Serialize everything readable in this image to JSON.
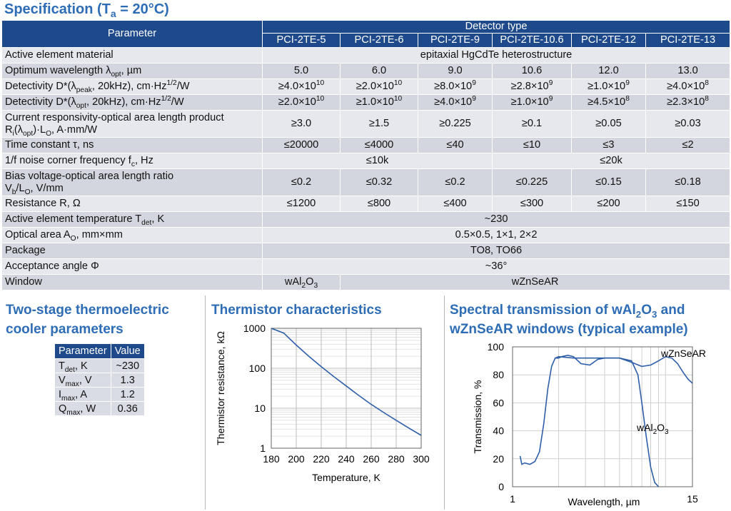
{
  "spec_title": "Specification (T",
  "spec_title_sub": "a",
  "spec_title_end": " = 20°C)",
  "table": {
    "parameter_header": "Parameter",
    "detector_type": "Detector type",
    "models": [
      "PCI-2TE-5",
      "PCI-2TE-6",
      "PCI-2TE-9",
      "PCI-2TE-10.6",
      "PCI-2TE-12",
      "PCI-2TE-13"
    ],
    "rows": {
      "material": {
        "label": "Active element material",
        "value": "epitaxial HgCdTe heterostructure"
      },
      "wavelength": {
        "label": "Optimum wavelength λ",
        "sub": "opt",
        "label_end": ", µm",
        "values": [
          "5.0",
          "6.0",
          "9.0",
          "10.6",
          "12.0",
          "13.0"
        ]
      },
      "d_peak": {
        "label": "Detectivity D*(λ",
        "sub": "peak",
        "label_end": ", 20kHz), cm·Hz",
        "sup": "1/2",
        "tail": "/W",
        "values": [
          [
            "≥4.0×10",
            "10"
          ],
          [
            "≥2.0×10",
            "10"
          ],
          [
            "≥8.0×10",
            "9"
          ],
          [
            "≥2.8×10",
            "9"
          ],
          [
            "≥1.0×10",
            "9"
          ],
          [
            "≥4.0×10",
            "8"
          ]
        ]
      },
      "d_opt": {
        "label": "Detectivity D*(λ",
        "sub": "opt",
        "label_end": ", 20kHz), cm·Hz",
        "sup": "1/2",
        "tail": "/W",
        "values": [
          [
            "≥2.0×10",
            "10"
          ],
          [
            "≥1.0×10",
            "10"
          ],
          [
            "≥4.0×10",
            "9"
          ],
          [
            "≥1.0×10",
            "9"
          ],
          [
            "≥4.5×10",
            "8"
          ],
          [
            "≥2.3×10",
            "8"
          ]
        ]
      },
      "responsivity": {
        "line1": "Current responsivity-optical area length product",
        "l2a": "R",
        "l2s1": "i",
        "l2b": "(λ",
        "l2s2": "opt",
        "l2c": ")·L",
        "l2s3": "O",
        "l2d": ", A·mm/W",
        "values": [
          "≥3.0",
          "≥1.5",
          "≥0.225",
          "≥0.1",
          "≥0.05",
          "≥0.03"
        ]
      },
      "time_constant": {
        "label": "Time constant τ, ns",
        "values": [
          "≤20000",
          "≤4000",
          "≤40",
          "≤10",
          "≤3",
          "≤2"
        ]
      },
      "noise_corner": {
        "label": "1/f noise corner frequency f",
        "sub": "c",
        "label_end": ", Hz",
        "value_a": "≤10k",
        "value_b": "≤20k"
      },
      "bias": {
        "line1": "Bias voltage-optical area length ratio",
        "l2a": "V",
        "l2s1": "b",
        "l2b": "/L",
        "l2s2": "O",
        "l2c": ", V/mm",
        "values": [
          "≤0.2",
          "≤0.32",
          "≤0.2",
          "≤0.225",
          "≤0.15",
          "≤0.18"
        ]
      },
      "resistance": {
        "label": "Resistance R, Ω",
        "values": [
          "≤1200",
          "≤800",
          "≤400",
          "≤300",
          "≤200",
          "≤150"
        ]
      },
      "temperature": {
        "label": "Active element temperature T",
        "sub": "det",
        "label_end": ", K",
        "value": "~230"
      },
      "optical_area": {
        "label": "Optical area A",
        "sub": "O",
        "label_end": ", mm×mm",
        "value": "0.5×0.5, 1×1, 2×2"
      },
      "package": {
        "label": "Package",
        "value": "TO8, TO66"
      },
      "acceptance": {
        "label": "Acceptance angle Φ",
        "value": "~36°"
      },
      "window": {
        "label": "Window",
        "value_a": "wAl",
        "value_a_sub": "2",
        "value_a_b": "O",
        "value_a_sub2": "3",
        "value_b": "wZnSeAR"
      }
    }
  },
  "cooler": {
    "title_line1": "Two-stage thermoelectric",
    "title_line2": "cooler parameters",
    "headers": [
      "Parameter",
      "Value"
    ],
    "rows": [
      {
        "p": "T",
        "s": "det",
        "u": ", K",
        "v": "~230"
      },
      {
        "p": "V",
        "s": "max",
        "u": ", V",
        "v": "1.3"
      },
      {
        "p": "I",
        "s": "max",
        "u": ", A",
        "v": "1.2"
      },
      {
        "p": "Q",
        "s": "max",
        "u": ", W",
        "v": "0.36"
      }
    ]
  },
  "thermistor": {
    "title": "Thermistor characteristics",
    "chart_data": {
      "type": "line",
      "xlabel": "Temperature, K",
      "ylabel": "Thermistor resistance, kΩ",
      "xlim": [
        180,
        300
      ],
      "ylim": [
        1,
        1000
      ],
      "yscale": "log",
      "xticks": [
        "180",
        "200",
        "220",
        "240",
        "260",
        "280",
        "300"
      ],
      "yticks": [
        "1",
        "10",
        "100",
        "1000"
      ],
      "grid": "on",
      "x": [
        180,
        190,
        200,
        210,
        220,
        230,
        240,
        250,
        260,
        270,
        280,
        290,
        300
      ],
      "y": [
        1800,
        760,
        380,
        200,
        110,
        62,
        36,
        21,
        12.5,
        7.8,
        5.0,
        3.2,
        2.1
      ],
      "color": "#2e5fa8"
    }
  },
  "spectral": {
    "title_a": "Spectral transmission of wAl",
    "title_sub1": "2",
    "title_b": "O",
    "title_sub2": "3",
    "title_c": " and",
    "title_line2": "wZnSeAR windows (typical example)",
    "chart_data": {
      "type": "line",
      "xlabel": "Wavelength, µm",
      "ylabel": "Transmission, %",
      "xlim": [
        1,
        15
      ],
      "ylim": [
        0,
        100
      ],
      "xscale": "log",
      "xticks": [
        "1",
        "15"
      ],
      "yticks": [
        "0",
        "20",
        "40",
        "60",
        "80",
        "100"
      ],
      "grid": "on",
      "color": "#2e5fa8",
      "series": [
        {
          "name": "wZnSeAR",
          "x": [
            1.9,
            2.0,
            2.1,
            2.3,
            2.5,
            2.8,
            3.2,
            3.6,
            4.0,
            4.5,
            5.0,
            6.0,
            7.0,
            8.0,
            9.0,
            10.0,
            11.0,
            12.0,
            13.0,
            14.0,
            15.0
          ],
          "y": [
            92,
            92,
            93,
            94,
            93,
            88,
            87,
            91,
            92,
            92,
            92,
            89,
            86,
            87,
            90,
            93,
            92,
            88,
            82,
            77,
            74
          ]
        },
        {
          "name": "wAl2O3",
          "x": [
            1.12,
            1.15,
            1.2,
            1.3,
            1.4,
            1.5,
            1.6,
            1.7,
            1.8,
            1.9,
            2.0,
            2.5,
            3.0,
            4.0,
            5.0,
            6.0,
            6.6,
            7.0,
            7.5,
            8.0,
            8.5,
            9.0
          ],
          "y": [
            22,
            16,
            17,
            16,
            18,
            25,
            45,
            70,
            86,
            92,
            93,
            92,
            92,
            92,
            92,
            90,
            80,
            60,
            35,
            14,
            3,
            0
          ]
        }
      ],
      "label_1": "wZnSeAR",
      "label_2a": "wAl",
      "label_2s": "2",
      "label_2b": "O",
      "label_2s2": "3"
    }
  }
}
